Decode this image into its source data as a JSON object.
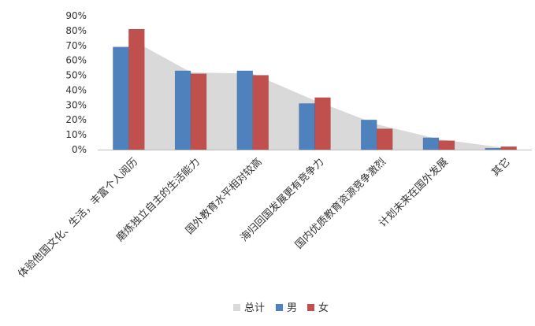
{
  "chart_data": {
    "type": "bar",
    "title": "",
    "xlabel": "",
    "ylabel": "",
    "ylim": [
      0,
      90
    ],
    "yticks": [
      0,
      10,
      20,
      30,
      40,
      50,
      60,
      70,
      80,
      90
    ],
    "ytick_labels": [
      "0%",
      "10%",
      "20%",
      "30%",
      "40%",
      "50%",
      "60%",
      "70%",
      "80%",
      "90%"
    ],
    "categories": [
      "体验他国文化、生活，丰富个人阅历",
      "磨炼独立自主的生活能力",
      "国外教育水平相对较高",
      "海归回国发展更有竞争力",
      "国内优质教育资源竞争激烈",
      "计划未来在国外发展",
      "其它"
    ],
    "series": [
      {
        "name": "总计",
        "kind": "area",
        "color": "#d9d9d9",
        "values": [
          75,
          52,
          51,
          33,
          17,
          7,
          1.5
        ]
      },
      {
        "name": "男",
        "kind": "bar",
        "color": "#4f81bd",
        "values": [
          69,
          53,
          53,
          31,
          20,
          8,
          1
        ]
      },
      {
        "name": "女",
        "kind": "bar",
        "color": "#c0504d",
        "values": [
          81,
          51,
          50,
          35,
          14,
          6,
          2
        ]
      }
    ],
    "grid": false,
    "legend_position": "bottom"
  }
}
